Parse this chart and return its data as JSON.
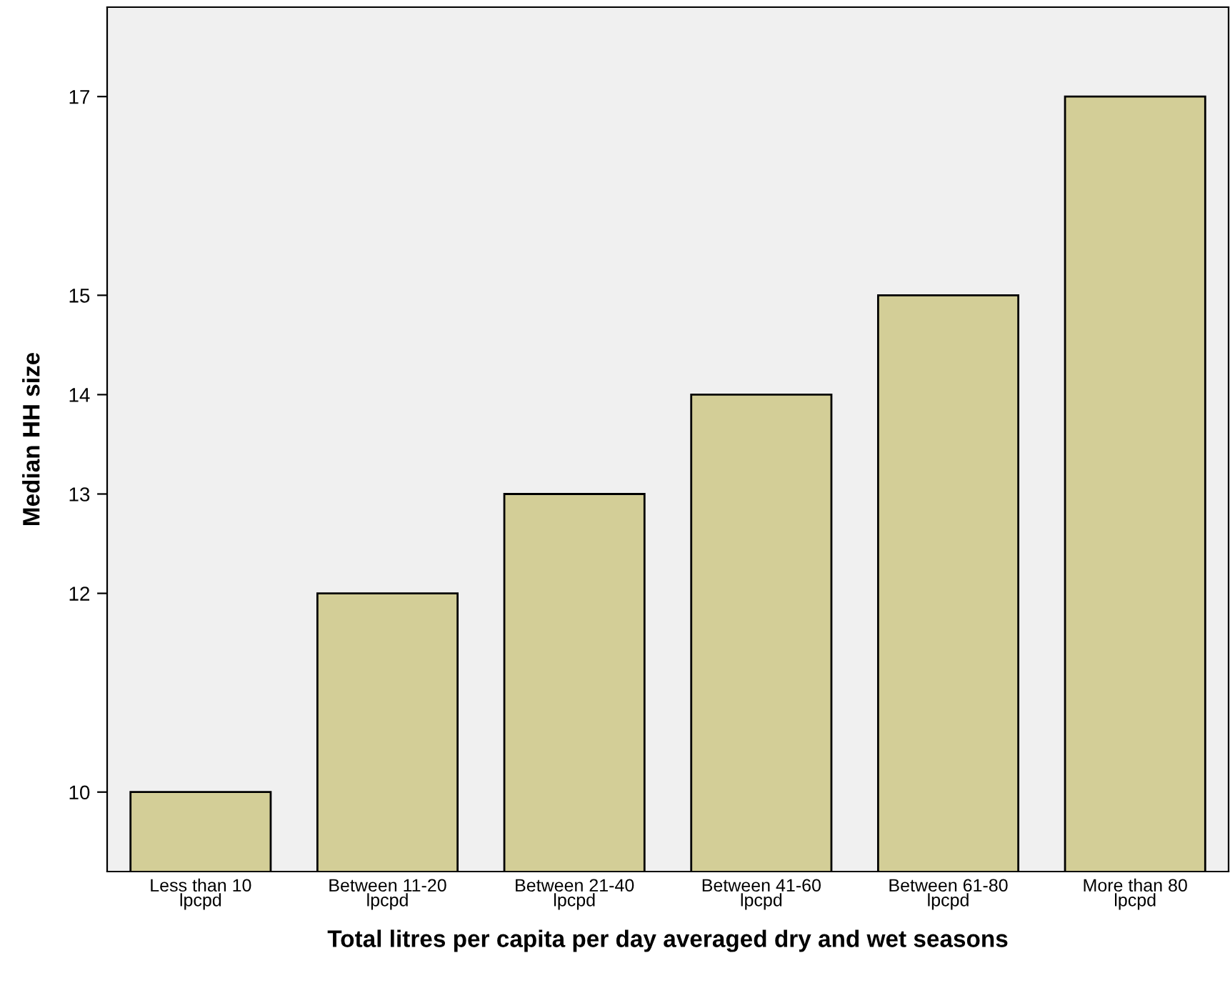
{
  "chart_data": {
    "type": "bar",
    "xlabel": "Total litres per capita per day averaged dry and wet seasons",
    "ylabel": "Median HH size",
    "categories": [
      "Less than 10\nlpcpd",
      "Between 11-20\nlpcpd",
      "Between 21-40\nlpcpd",
      "Between 41-60\nlpcpd",
      "Between 61-80\nlpcpd",
      "More than 80\nlpcpd"
    ],
    "values": [
      10,
      12,
      13,
      14,
      15,
      17
    ],
    "color": "#d3ce97",
    "ylim": [
      9.2,
      17.9
    ],
    "yticks": [
      10,
      12,
      13,
      14,
      15,
      17
    ],
    "grid": false,
    "legend": false
  }
}
